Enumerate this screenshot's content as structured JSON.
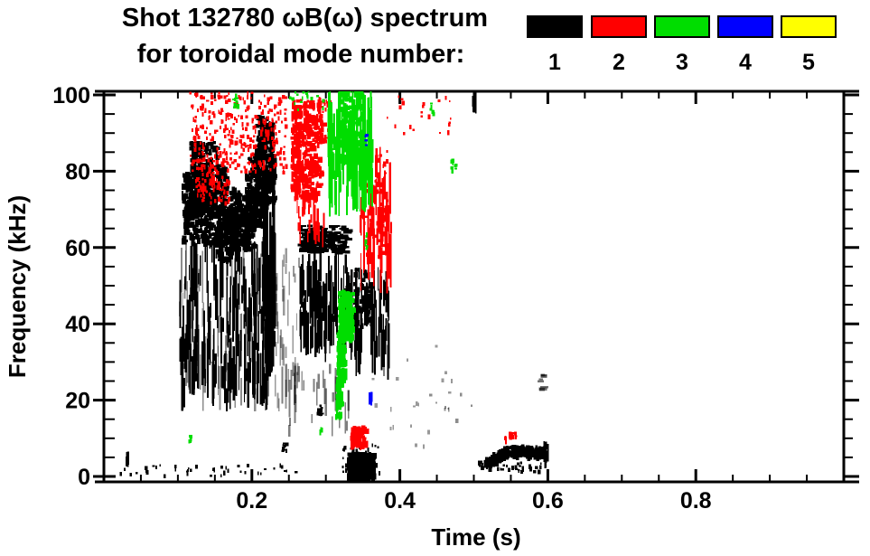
{
  "chart_data": {
    "type": "scatter",
    "title_line1": "Shot 132780 ωB(ω) spectrum",
    "title_line2": "for toroidal mode number:",
    "xlabel": "Time (s)",
    "ylabel": "Frequency (kHz)",
    "xlim": [
      0,
      1.0
    ],
    "ylim": [
      0,
      100
    ],
    "grid": false,
    "frame_color": "#000000",
    "background": "#ffffff",
    "legend_position": "top-right",
    "x_major_ticks": [
      0.2,
      0.4,
      0.6,
      0.8
    ],
    "x_major_labels": [
      "0.2",
      "0.4",
      "0.6",
      "0.8"
    ],
    "x_minor_step": 0.05,
    "y_major_ticks": [
      0,
      20,
      40,
      60,
      80,
      100
    ],
    "y_major_labels": [
      "0",
      "20",
      "40",
      "60",
      "80",
      "100"
    ],
    "y_minor_step": 5,
    "legend": [
      {
        "label": "1",
        "color": "#000000"
      },
      {
        "label": "2",
        "color": "#ff0000"
      },
      {
        "label": "3",
        "color": "#00dd00"
      },
      {
        "label": "4",
        "color": "#0000ff"
      },
      {
        "label": "5",
        "color": "#ffff00"
      }
    ],
    "series": [
      {
        "name": "toroidal mode n=1",
        "color": "#000000",
        "clusters": [
          {
            "shape": "blob",
            "t": [
              0.105,
              0.138
            ],
            "f": [
              62,
              80
            ],
            "n": 240
          },
          {
            "shape": "blob",
            "t": [
              0.115,
              0.152
            ],
            "f": [
              70,
              88
            ],
            "n": 260
          },
          {
            "shape": "blob",
            "t": [
              0.134,
              0.168
            ],
            "f": [
              61,
              82
            ],
            "n": 240
          },
          {
            "shape": "blob",
            "t": [
              0.15,
              0.178
            ],
            "f": [
              57,
              72
            ],
            "n": 170
          },
          {
            "shape": "blob",
            "t": [
              0.168,
              0.202
            ],
            "f": [
              60,
              76
            ],
            "n": 220
          },
          {
            "shape": "blob",
            "t": [
              0.19,
              0.218
            ],
            "f": [
              65,
              85
            ],
            "n": 200
          },
          {
            "shape": "blob",
            "t": [
              0.204,
              0.229
            ],
            "f": [
              72,
              95
            ],
            "n": 230
          },
          {
            "shape": "vstreak",
            "t": [
              0.214,
              0.23
            ],
            "f": [
              20,
              92
            ],
            "n": 55,
            "len": [
              6,
              26
            ]
          },
          {
            "shape": "vstreak",
            "t": [
              0.1,
              0.23
            ],
            "f": [
              17,
              62
            ],
            "n": 170,
            "len": [
              3,
              16
            ]
          },
          {
            "shape": "vstreak",
            "t": [
              0.1,
              0.23
            ],
            "f": [
              17,
              62
            ],
            "n": 90,
            "len": [
              3,
              14
            ],
            "alpha": 0.45
          },
          {
            "shape": "hdash",
            "t": [
              0.262,
              0.328
            ],
            "f": [
              59,
              66
            ],
            "n": 180
          },
          {
            "shape": "vstreak",
            "t": [
              0.264,
              0.335
            ],
            "f": [
              30,
              59
            ],
            "n": 110,
            "len": [
              3,
              14
            ]
          },
          {
            "shape": "vstreak",
            "t": [
              0.23,
              0.268
            ],
            "f": [
              15,
              60
            ],
            "n": 40,
            "len": [
              2,
              8
            ],
            "alpha": 0.4
          },
          {
            "shape": "vstreak",
            "t": [
              0.24,
              0.33
            ],
            "f": [
              10,
              30
            ],
            "n": 30,
            "len": [
              2,
              10
            ],
            "alpha": 0.5
          },
          {
            "shape": "vstreak",
            "t": [
              0.33,
              0.384
            ],
            "f": [
              25,
              55
            ],
            "n": 70,
            "len": [
              3,
              12
            ]
          },
          {
            "shape": "blob",
            "t": [
              0.333,
              0.36
            ],
            "f": [
              40,
              55
            ],
            "n": 50
          },
          {
            "shape": "blob",
            "t": [
              0.328,
              0.363
            ],
            "f": [
              0,
              6.5
            ],
            "n": 420
          },
          {
            "shape": "speckle",
            "t": [
              0.318,
              0.372
            ],
            "f": [
              0,
              9
            ],
            "n": 50
          },
          {
            "shape": "speckle",
            "t": [
              0.02,
              0.26
            ],
            "f": [
              0.5,
              3.5
            ],
            "n": 40
          },
          {
            "shape": "vstreak",
            "t": [
              0.029,
              0.034
            ],
            "f": [
              2.5,
              6.5
            ],
            "n": 8,
            "len": [
              2,
              4
            ]
          },
          {
            "shape": "speckle",
            "t": [
              0.24,
              0.247
            ],
            "f": [
              7,
              9
            ],
            "n": 12
          },
          {
            "shape": "speckle",
            "t": [
              0.287,
              0.294
            ],
            "f": [
              16,
              20
            ],
            "n": 12
          },
          {
            "shape": "path",
            "pts": [
              [
                0.517,
                3.8
              ],
              [
                0.525,
                4.8
              ],
              [
                0.533,
                5.8
              ],
              [
                0.541,
                6.8
              ],
              [
                0.549,
                7.3
              ],
              [
                0.556,
                6.7
              ],
              [
                0.563,
                7.5
              ],
              [
                0.571,
                6.8
              ],
              [
                0.578,
                7.4
              ],
              [
                0.586,
                6.5
              ],
              [
                0.593,
                7.2
              ]
            ],
            "spread": 1.3,
            "n": 300
          },
          {
            "shape": "speckle",
            "t": [
              0.52,
              0.6
            ],
            "f": [
              1.5,
              4
            ],
            "n": 25
          },
          {
            "shape": "vstreak",
            "t": [
              0.594,
              0.599
            ],
            "f": [
              2,
              10
            ],
            "n": 10,
            "len": [
              2,
              6
            ]
          },
          {
            "shape": "speckle",
            "t": [
              0.505,
              0.52
            ],
            "f": [
              2.5,
              4.5
            ],
            "n": 18
          },
          {
            "shape": "vstreak",
            "t": [
              0.497,
              0.504
            ],
            "f": [
              95,
              101
            ],
            "n": 12,
            "len": [
              2,
              5
            ]
          },
          {
            "shape": "hdash",
            "t": [
              0.585,
              0.593
            ],
            "f": [
              23,
              27
            ],
            "n": 8,
            "alpha": 0.55
          },
          {
            "shape": "speckle",
            "t": [
              0.36,
              0.47
            ],
            "f": [
              8,
              35
            ],
            "n": 20,
            "alpha": 0.4
          },
          {
            "shape": "speckle",
            "t": [
              0.43,
              0.5
            ],
            "f": [
              15,
              23
            ],
            "n": 8,
            "alpha": 0.45
          }
        ]
      },
      {
        "name": "toroidal mode n=2",
        "color": "#ff0000",
        "clusters": [
          {
            "shape": "speckle",
            "t": [
              0.115,
              0.245
            ],
            "f": [
              80,
              101
            ],
            "n": 330
          },
          {
            "shape": "speckle",
            "t": [
              0.123,
              0.168
            ],
            "f": [
              72,
              84
            ],
            "n": 100
          },
          {
            "shape": "blob",
            "t": [
              0.252,
              0.292
            ],
            "f": [
              73,
              99
            ],
            "n": 330
          },
          {
            "shape": "speckle",
            "t": [
              0.285,
              0.305
            ],
            "f": [
              88,
              101
            ],
            "n": 45
          },
          {
            "shape": "vstreak",
            "t": [
              0.26,
              0.3
            ],
            "f": [
              60,
              75
            ],
            "n": 25,
            "len": [
              2,
              8
            ]
          },
          {
            "shape": "vstreak",
            "t": [
              0.345,
              0.388
            ],
            "f": [
              48,
              88
            ],
            "n": 70,
            "len": [
              3,
              14
            ]
          },
          {
            "shape": "speckle",
            "t": [
              0.35,
              0.382
            ],
            "f": [
              58,
              86
            ],
            "n": 70
          },
          {
            "shape": "speckle",
            "t": [
              0.38,
              0.47
            ],
            "f": [
              90,
              100
            ],
            "n": 22
          },
          {
            "shape": "blob",
            "t": [
              0.333,
              0.352
            ],
            "f": [
              8,
              13.5
            ],
            "n": 70
          },
          {
            "shape": "speckle",
            "t": [
              0.54,
              0.558
            ],
            "f": [
              9.5,
              12
            ],
            "n": 14
          }
        ]
      },
      {
        "name": "toroidal mode n=3",
        "color": "#00dd00",
        "clusters": [
          {
            "shape": "vstreak",
            "t": [
              0.302,
              0.362
            ],
            "f": [
              68,
              102
            ],
            "n": 120,
            "len": [
              4,
              18
            ]
          },
          {
            "shape": "blob",
            "t": [
              0.315,
              0.347
            ],
            "f": [
              83,
              102
            ],
            "n": 200
          },
          {
            "shape": "blob",
            "t": [
              0.316,
              0.334
            ],
            "f": [
              36,
              49
            ],
            "n": 230
          },
          {
            "shape": "blob",
            "t": [
              0.314,
              0.323
            ],
            "f": [
              24,
              38
            ],
            "n": 90
          },
          {
            "shape": "blob",
            "t": [
              0.3125,
              0.319
            ],
            "f": [
              16,
              25
            ],
            "n": 45
          },
          {
            "shape": "speckle",
            "t": [
              0.44,
              0.444
            ],
            "f": [
              95,
              98
            ],
            "n": 6
          },
          {
            "shape": "speckle",
            "t": [
              0.468,
              0.474
            ],
            "f": [
              79,
              84
            ],
            "n": 9
          },
          {
            "shape": "speckle",
            "t": [
              0.352,
              0.357
            ],
            "f": [
              60,
              64
            ],
            "n": 6
          },
          {
            "shape": "speckle",
            "t": [
              0.114,
              0.118
            ],
            "f": [
              9.5,
              11.5
            ],
            "n": 5
          },
          {
            "shape": "speckle",
            "t": [
              0.289,
              0.293
            ],
            "f": [
              11,
              13
            ],
            "n": 4
          },
          {
            "shape": "speckle",
            "t": [
              0.173,
              0.181
            ],
            "f": [
              97,
              101
            ],
            "n": 8
          },
          {
            "shape": "speckle",
            "t": [
              0.25,
              0.3
            ],
            "f": [
              96,
              102
            ],
            "n": 18
          }
        ]
      },
      {
        "name": "toroidal mode n=4",
        "color": "#0000ff",
        "clusters": [
          {
            "shape": "speckle",
            "t": [
              0.352,
              0.356
            ],
            "f": [
              87,
              90
            ],
            "n": 5
          },
          {
            "shape": "vstreak",
            "t": [
              0.356,
              0.361
            ],
            "f": [
              18.5,
              22.5
            ],
            "n": 6,
            "len": [
              1.5,
              3.5
            ]
          }
        ]
      },
      {
        "name": "toroidal mode n=5",
        "color": "#ffff00",
        "clusters": []
      }
    ]
  }
}
